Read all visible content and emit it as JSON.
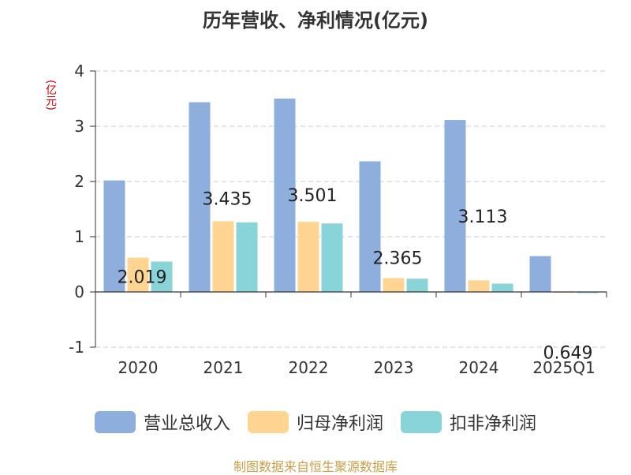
{
  "chart_data": {
    "type": "bar",
    "title": "历年营收、净利情况(亿元)",
    "ylabel": "(亿元)",
    "xlabel": "",
    "categories": [
      "2020",
      "2021",
      "2022",
      "2023",
      "2024",
      "2025Q1"
    ],
    "ylim": [
      -1,
      4
    ],
    "yticks": [
      -1,
      0,
      1,
      2,
      3,
      4
    ],
    "grid": true,
    "legend_position": "bottom",
    "series": [
      {
        "name": "营业总收入",
        "color": "#8eaedd",
        "values": [
          2.019,
          3.435,
          3.501,
          2.365,
          3.113,
          0.649
        ],
        "labels": [
          "2.019",
          "3.435",
          "3.501",
          "2.365",
          "3.113",
          "0.649"
        ]
      },
      {
        "name": "归母净利润",
        "color": "#ffd591",
        "values": [
          0.62,
          1.28,
          1.27,
          0.25,
          0.21,
          -0.01
        ]
      },
      {
        "name": "扣非净利润",
        "color": "#88d4d8",
        "values": [
          0.55,
          1.26,
          1.24,
          0.24,
          0.15,
          -0.02
        ]
      }
    ]
  },
  "footer": {
    "source": "制图数据来自恒生聚源数据库"
  }
}
